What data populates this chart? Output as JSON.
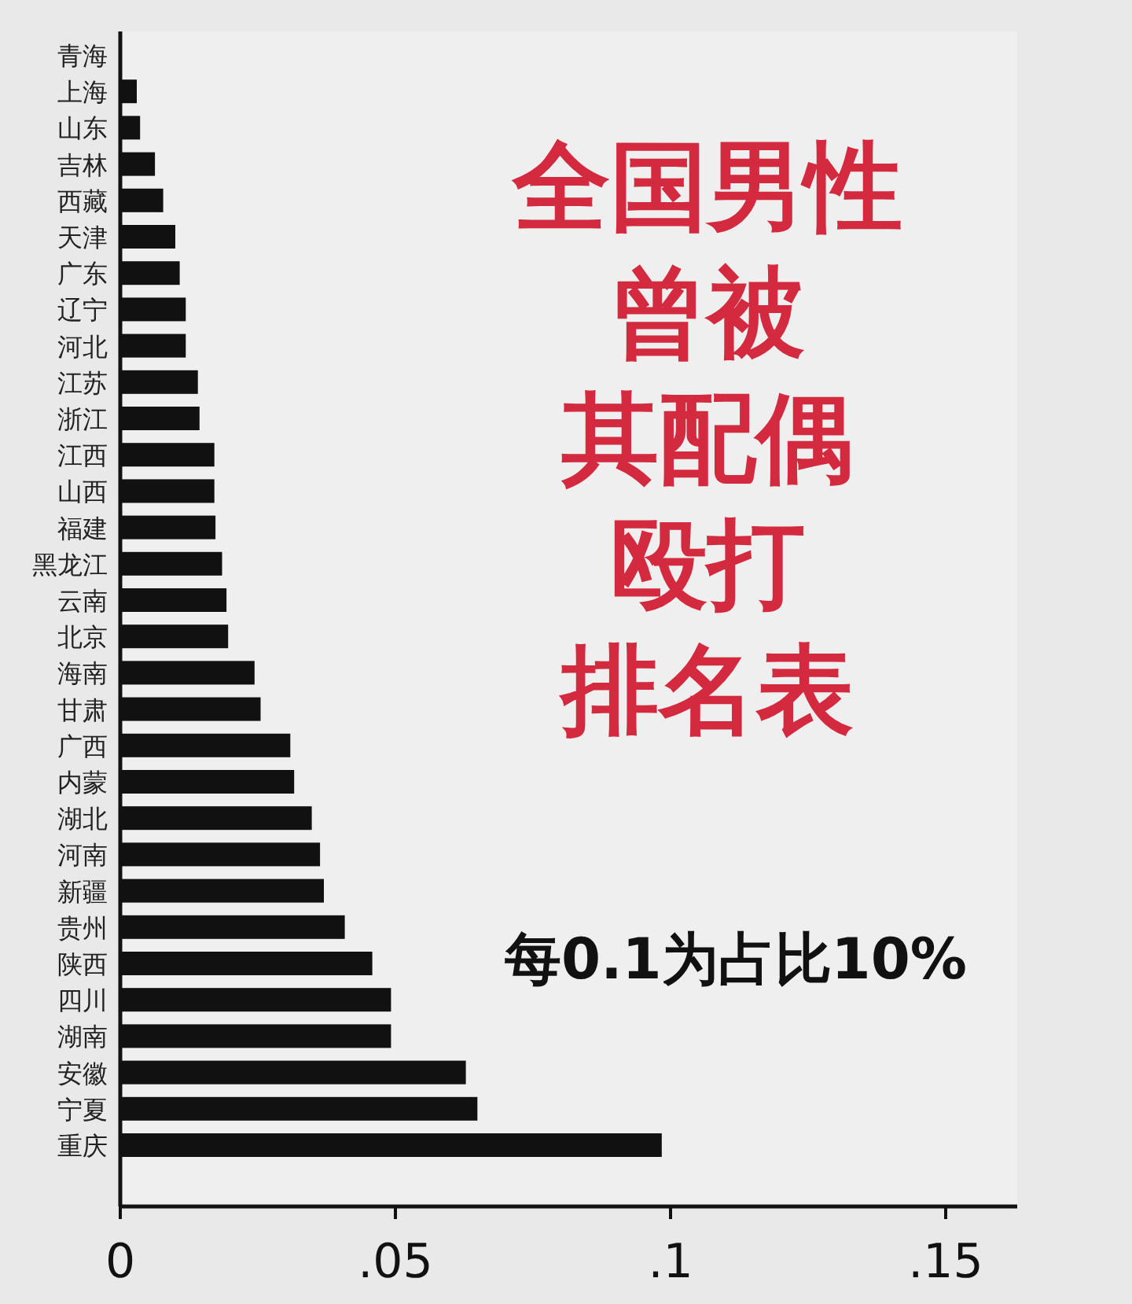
{
  "chart_data": {
    "type": "bar",
    "orientation": "horizontal",
    "title": "全国男性曾被其配偶殴打排名表",
    "subtitle": "每0.1为占比10%",
    "categories": [
      "青海",
      "上海",
      "山东",
      "吉林",
      "西藏",
      "天津",
      "广东",
      "辽宁",
      "河北",
      "江苏",
      "浙江",
      "江西",
      "山西",
      "福建",
      "黑龙江",
      "云南",
      "北京",
      "海南",
      "甘肃",
      "广西",
      "内蒙",
      "湖北",
      "河南",
      "新疆",
      "贵州",
      "陕西",
      "四川",
      "湖南",
      "安徽",
      "宁夏",
      "重庆"
    ],
    "values": [
      0,
      0.003,
      0.0036,
      0.0063,
      0.0078,
      0.01,
      0.0108,
      0.0119,
      0.0119,
      0.0141,
      0.0144,
      0.0171,
      0.0171,
      0.0173,
      0.0185,
      0.0193,
      0.0196,
      0.0244,
      0.0255,
      0.0309,
      0.0316,
      0.0348,
      0.0363,
      0.037,
      0.0408,
      0.0458,
      0.0492,
      0.0492,
      0.0628,
      0.0649,
      0.0984
    ],
    "color": "#111111",
    "xlim": [
      0,
      0.163
    ],
    "xticks": [
      {
        "value": 0,
        "label": "0"
      },
      {
        "value": 0.05,
        "label": ".05"
      },
      {
        "value": 0.1,
        "label": ".1"
      },
      {
        "value": 0.15,
        "label": ".15"
      }
    ],
    "grid": false,
    "legend": false
  }
}
